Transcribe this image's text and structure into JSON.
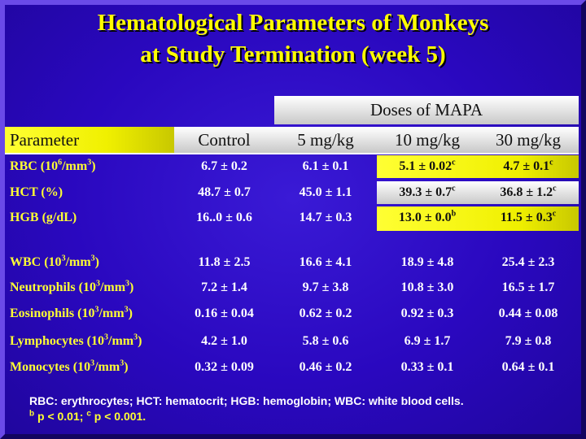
{
  "title": {
    "line1": "Hematological Parameters of Monkeys",
    "line2": "at Study Termination (week 5)"
  },
  "doses_header": "Doses of MAPA",
  "columns": {
    "parameter": "Parameter",
    "control": "Control",
    "dose5": "5 mg/kg",
    "dose10": "10 mg/kg",
    "dose30": "30 mg/kg"
  },
  "rows": [
    {
      "label_pre": "RBC (10",
      "label_sup": "6",
      "label_mid": "/mm",
      "label_sup2": "3",
      "label_post": ")",
      "control": "6.7 ± 0.2",
      "dose5": "6.1 ± 0.1",
      "dose10": "5.1 ± 0.02",
      "dose10_sup": "c",
      "dose30": "4.7 ± 0.1",
      "dose30_sup": "c"
    },
    {
      "label_pre": "HCT (%)",
      "label_sup": "",
      "label_mid": "",
      "label_sup2": "",
      "label_post": "",
      "control": "48.7 ± 0.7",
      "dose5": "45.0 ± 1.1",
      "dose10": "39.3 ± 0.7",
      "dose10_sup": "c",
      "dose30": "36.8 ± 1.2",
      "dose30_sup": "c"
    },
    {
      "label_pre": "HGB (g/dL)",
      "label_sup": "",
      "label_mid": "",
      "label_sup2": "",
      "label_post": "",
      "control": "16..0 ± 0.6",
      "dose5": "14.7 ± 0.3",
      "dose10": "13.0 ± 0.0",
      "dose10_sup": "b",
      "dose30": "11.5 ± 0.3",
      "dose30_sup": "c"
    },
    {
      "label_pre": "WBC (10",
      "label_sup": "3",
      "label_mid": "/mm",
      "label_sup2": "3",
      "label_post": ")",
      "control": "11.8 ± 2.5",
      "dose5": "16.6 ± 4.1",
      "dose10": "18.9 ± 4.8",
      "dose10_sup": "",
      "dose30": "25.4 ± 2.3",
      "dose30_sup": ""
    },
    {
      "label_pre": "Neutrophils (10",
      "label_sup": "3",
      "label_mid": "/mm",
      "label_sup2": "3",
      "label_post": ")",
      "control": "7.2 ± 1.4",
      "dose5": "9.7 ± 3.8",
      "dose10": "10.8 ± 3.0",
      "dose10_sup": "",
      "dose30": "16.5 ± 1.7",
      "dose30_sup": ""
    },
    {
      "label_pre": "Eosinophils (10",
      "label_sup": "3",
      "label_mid": "/mm",
      "label_sup2": "3",
      "label_post": ")",
      "control": "0.16 ± 0.04",
      "dose5": "0.62 ± 0.2",
      "dose10": "0.92 ± 0.3",
      "dose10_sup": "",
      "dose30": "0.44 ± 0.08",
      "dose30_sup": ""
    },
    {
      "label_pre": "Lymphocytes (10",
      "label_sup": "3",
      "label_mid": "/mm",
      "label_sup2": "3",
      "label_post": ")",
      "control": "4.2 ± 1.0",
      "dose5": "5.8 ± 0.6",
      "dose10": "6.9 ± 1.7",
      "dose10_sup": "",
      "dose30": "7.9 ± 0.8",
      "dose30_sup": ""
    },
    {
      "label_pre": "Monocytes (10",
      "label_sup": "3",
      "label_mid": "/mm",
      "label_sup2": "3",
      "label_post": ")",
      "control": "0.32 ± 0.09",
      "dose5": "0.46 ± 0.2",
      "dose10": "0.33 ± 0.1",
      "dose10_sup": "",
      "dose30": "0.64 ± 0.1",
      "dose30_sup": ""
    }
  ],
  "footnote": {
    "line1": "RBC: erythrocytes; HCT: hematocrit; HGB: hemoglobin; WBC: white blood cells.",
    "b_mark": "b",
    "b_text": " p < 0.01; ",
    "c_mark": "c",
    "c_text": " p < 0.001."
  },
  "colors": {
    "background": "#2a08bf",
    "title": "#ffff00",
    "highlight": "#ffff33",
    "header_grey": "#e0e0e0"
  }
}
